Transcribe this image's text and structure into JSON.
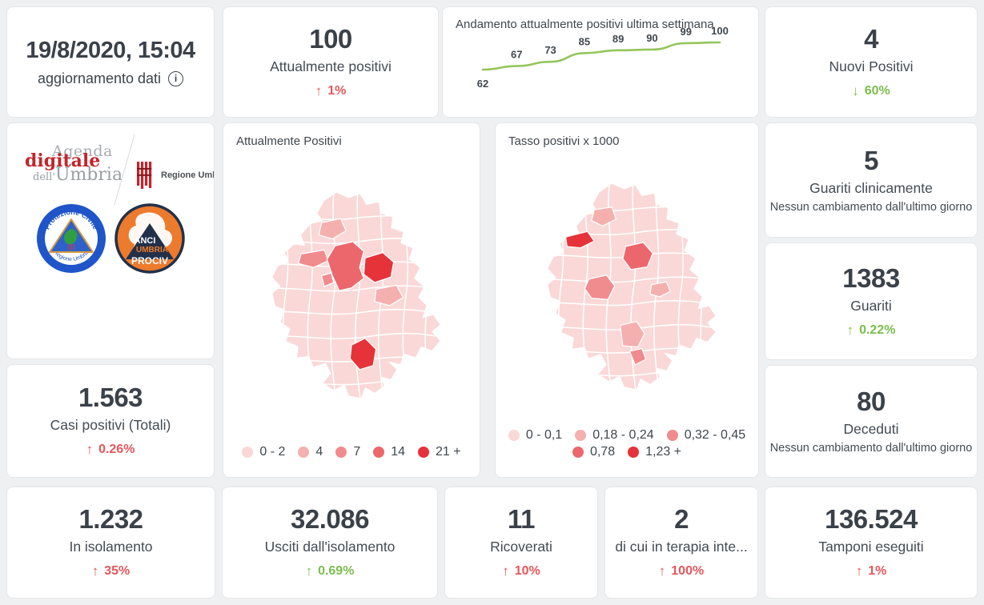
{
  "colors": {
    "accent_red": "#e4575c",
    "accent_green": "#7cbd4f",
    "chart_line": "#94c55d",
    "number_text": "#3a4149",
    "map_scale": [
      "#f9d8d7",
      "#f4b0af",
      "#f08c8e",
      "#ec676c",
      "#e63239"
    ]
  },
  "icons": {
    "info": "i"
  },
  "cards": {
    "updated": {
      "datetime": "19/8/2020, 15:04",
      "label": "aggiornamento dati"
    },
    "attualmente_positivi": {
      "value": "100",
      "label": "Attualmente positivi",
      "arrow": "↑",
      "trend": "1%"
    },
    "nuovi_positivi": {
      "value": "4",
      "label": "Nuovi Positivi",
      "arrow": "↓",
      "trend": "60%"
    },
    "guariti_clinicamente": {
      "value": "5",
      "label": "Guariti clinicamente",
      "note": "Nessun cambiamento dall'ultimo giorno"
    },
    "guariti": {
      "value": "1383",
      "label": "Guariti",
      "arrow": "↑",
      "trend": "0.22%"
    },
    "deceduti": {
      "value": "80",
      "label": "Deceduti",
      "note": "Nessun cambiamento dall'ultimo giorno"
    },
    "casi_totali": {
      "value": "1.563",
      "label": "Casi positivi (Totali)",
      "arrow": "↑",
      "trend": "0.26%"
    },
    "in_isolamento": {
      "value": "1.232",
      "label": "In isolamento",
      "arrow": "↑",
      "trend": "35%"
    },
    "usciti_isolamento": {
      "value": "32.086",
      "label": "Usciti dall'isolamento",
      "arrow": "↑",
      "trend": "0.69%"
    },
    "ricoverati": {
      "value": "11",
      "label": "Ricoverati",
      "arrow": "↑",
      "trend": "10%"
    },
    "terapia_intensiva": {
      "value": "2",
      "label": "di cui in terapia inte...",
      "arrow": "↑",
      "trend": "100%"
    },
    "tamponi": {
      "value": "136.524",
      "label": "Tamponi eseguiti",
      "arrow": "↑",
      "trend": "1%"
    }
  },
  "chart_data": {
    "type": "line",
    "title": "Andamento attualmente positivi ultima settimana",
    "x": [
      1,
      2,
      3,
      4,
      5,
      6,
      7,
      8
    ],
    "values": [
      62,
      67,
      73,
      85,
      89,
      90,
      99,
      100
    ],
    "ylim": [
      60,
      102
    ],
    "grid": false,
    "legend_position": "none",
    "data_labels": true
  },
  "maps": [
    {
      "title": "Attualmente Positivi",
      "legend": [
        "0 - 2",
        "4",
        "7",
        "14",
        "21 +"
      ]
    },
    {
      "title": "Tasso positivi x 1000",
      "legend": [
        "0 - 0,1",
        "0,18 - 0,24",
        "0,32 - 0,45",
        "0,78",
        "1,23 +"
      ]
    }
  ],
  "logos": {
    "agenda_line1": "Agenda",
    "agenda_line2": "digitale",
    "agenda_line3_small": "dell'",
    "agenda_line3": "Umbria",
    "regione": "Regione Umbria",
    "pc_top": "Protezione Civile",
    "pc_bottom": "Regione Umbria",
    "anci_1": "ANCI",
    "anci_2": "UMBRIA",
    "anci_3": "PROCIV"
  }
}
